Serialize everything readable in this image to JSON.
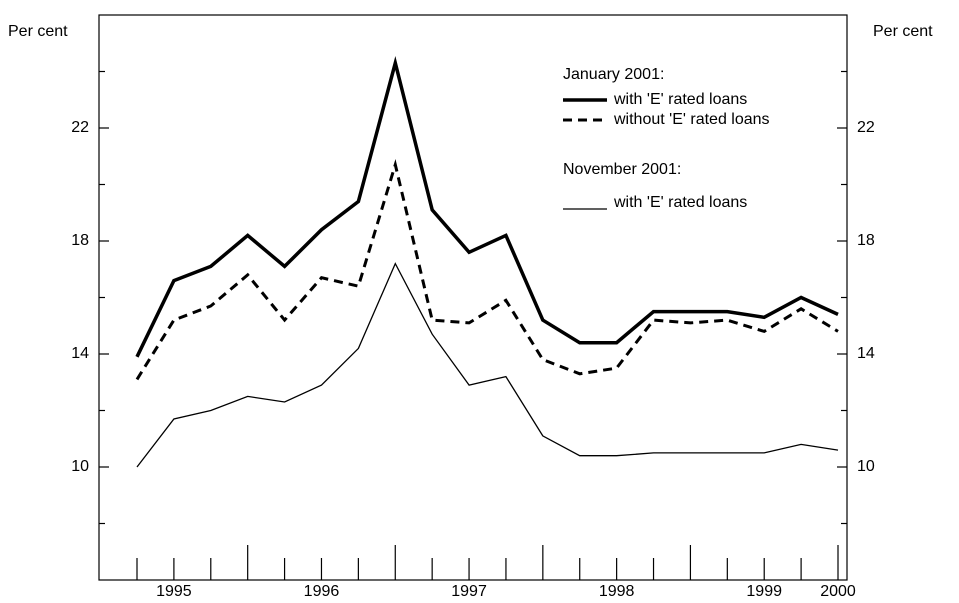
{
  "chart_data": {
    "type": "line",
    "y_label": "Per cent",
    "y2_label": "Per cent",
    "mirror_y_axis": true,
    "categories": [
      null,
      "1995",
      null,
      null,
      null,
      "1996",
      null,
      null,
      null,
      "1997",
      null,
      null,
      null,
      "1998",
      null,
      null,
      null,
      "1999",
      null,
      "2000"
    ],
    "ylim": [
      6,
      26
    ],
    "yticks": [
      10,
      14,
      18,
      22
    ],
    "yminor_ticks": [
      8,
      12,
      16,
      20,
      24
    ],
    "legend_titles": [
      "January 2001:",
      "November 2001:"
    ],
    "series": [
      {
        "name": "with 'E' rated loans",
        "color": "#000000",
        "width": 3.5,
        "dashed": false,
        "legend_group": 0,
        "values": [
          13.9,
          16.6,
          17.1,
          18.2,
          17.1,
          18.4,
          19.4,
          24.3,
          19.1,
          17.6,
          18.2,
          15.2,
          14.4,
          14.4,
          15.5,
          15.5,
          15.5,
          15.3,
          16.0,
          15.4
        ]
      },
      {
        "name": "without 'E' rated loans",
        "color": "#000000",
        "width": 3,
        "dashed": true,
        "legend_group": 0,
        "values": [
          13.1,
          15.2,
          15.7,
          16.8,
          15.2,
          16.7,
          16.4,
          20.7,
          15.2,
          15.1,
          15.9,
          13.8,
          13.3,
          13.5,
          15.2,
          15.1,
          15.2,
          14.8,
          15.6,
          14.8
        ]
      },
      {
        "name": "with 'E' rated loans",
        "color": "#000000",
        "width": 1.3,
        "dashed": false,
        "legend_group": 1,
        "values": [
          10.0,
          11.7,
          12.0,
          12.5,
          12.3,
          12.9,
          14.2,
          17.2,
          14.7,
          12.9,
          13.2,
          11.1,
          10.4,
          10.4,
          10.5,
          10.5,
          10.5,
          10.5,
          10.8,
          10.6
        ]
      }
    ]
  }
}
